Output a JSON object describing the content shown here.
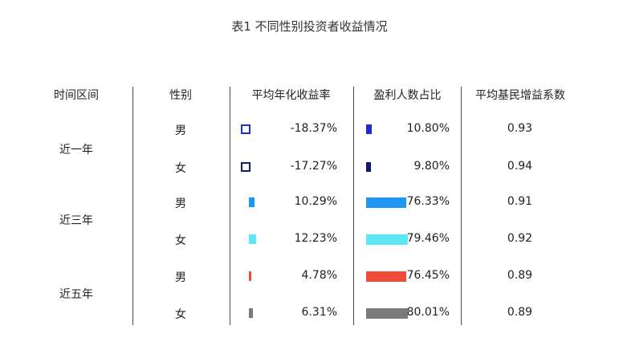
{
  "title": "表1 不同性别投资者收益情况",
  "headers": {
    "period": "时间区间",
    "gender": "性别",
    "return": "平均年化收益率",
    "profit": "盈利人数占比",
    "coef": "平均基民增益系数"
  },
  "periods": [
    "近一年",
    "近三年",
    "近五年"
  ],
  "rows": [
    {
      "gender": "男",
      "return_label": "-18.37%",
      "profit_label": "10.80%",
      "coef": "0.93"
    },
    {
      "gender": "女",
      "return_label": "-17.27%",
      "profit_label": "9.80%",
      "coef": "0.94"
    },
    {
      "gender": "男",
      "return_label": "10.29%",
      "profit_label": "76.33%",
      "coef": "0.91"
    },
    {
      "gender": "女",
      "return_label": "12.23%",
      "profit_label": "79.46%",
      "coef": "0.92"
    },
    {
      "gender": "男",
      "return_label": "4.78%",
      "profit_label": "76.45%",
      "coef": "0.89"
    },
    {
      "gender": "女",
      "return_label": "6.31%",
      "profit_label": "80.01%",
      "coef": "0.89"
    }
  ],
  "chart_data": {
    "type": "table",
    "title": "表1 不同性别投资者收益情况",
    "columns": [
      "时间区间",
      "性别",
      "平均年化收益率",
      "盈利人数占比",
      "平均基民增益系数"
    ],
    "series": [
      {
        "period": "近一年",
        "gender": "男",
        "avg_annual_return": -18.37,
        "profit_share": 10.8,
        "gain_coef": 0.93,
        "color": "#1f2bd6"
      },
      {
        "period": "近一年",
        "gender": "女",
        "avg_annual_return": -17.27,
        "profit_share": 9.8,
        "gain_coef": 0.94,
        "color": "#0d1b6e"
      },
      {
        "period": "近三年",
        "gender": "男",
        "avg_annual_return": 10.29,
        "profit_share": 76.33,
        "gain_coef": 0.91,
        "color": "#1e96f0"
      },
      {
        "period": "近三年",
        "gender": "女",
        "avg_annual_return": 12.23,
        "profit_share": 79.46,
        "gain_coef": 0.92,
        "color": "#5ce6f6"
      },
      {
        "period": "近五年",
        "gender": "男",
        "avg_annual_return": 4.78,
        "profit_share": 76.45,
        "gain_coef": 0.89,
        "color": "#f04a3a"
      },
      {
        "period": "近五年",
        "gender": "女",
        "avg_annual_return": 6.31,
        "profit_share": 80.01,
        "gain_coef": 0.89,
        "color": "#7a7a7a"
      }
    ]
  }
}
